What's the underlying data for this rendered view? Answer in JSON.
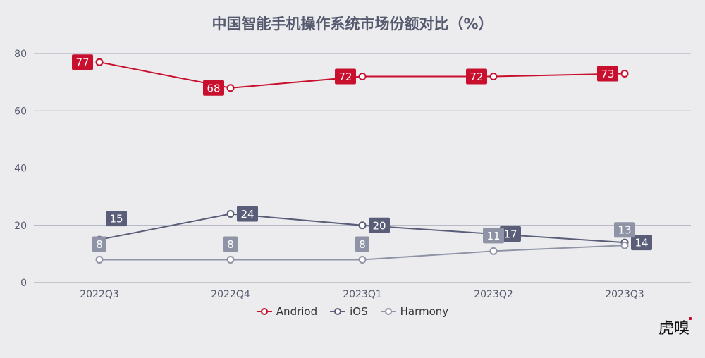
{
  "title": "中国智能手机操作系统市场份额对比（%）",
  "logo": "虎嗅",
  "chart_data": {
    "type": "line",
    "title": "中国智能手机操作系统市场份额对比（%）",
    "categories": [
      "2022Q3",
      "2022Q4",
      "2023Q1",
      "2023Q2",
      "2023Q3"
    ],
    "ylim": [
      0,
      80
    ],
    "yticks": [
      0,
      20,
      40,
      60,
      80
    ],
    "grid": true,
    "legend_position": "bottom",
    "series": [
      {
        "name": "Andriod",
        "color": "#c8102e",
        "values": [
          77,
          68,
          72,
          72,
          73
        ]
      },
      {
        "name": "iOS",
        "color": "#5a5d78",
        "values": [
          15,
          24,
          20,
          17,
          14
        ]
      },
      {
        "name": "Harmony",
        "color": "#8f93a6",
        "values": [
          8,
          8,
          8,
          11,
          13
        ]
      }
    ]
  }
}
